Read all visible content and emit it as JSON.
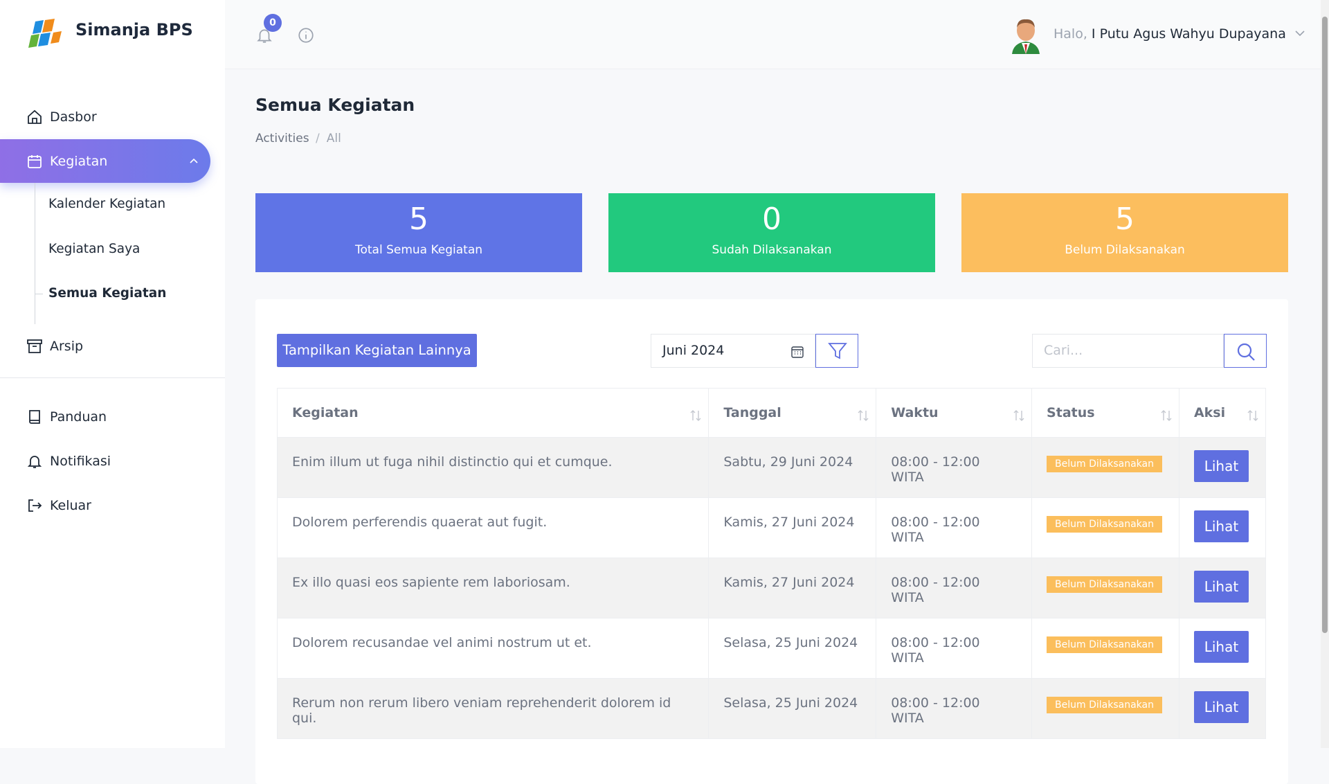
{
  "sidebar": {
    "brand": "Simanja BPS",
    "menu": {
      "dasbor": "Dasbor",
      "kegiatan": "Kegiatan",
      "children": [
        "Kalender Kegiatan",
        "Kegiatan Saya",
        "Semua Kegiatan"
      ],
      "arsip": "Arsip",
      "panduan": "Panduan",
      "notifikasi": "Notifikasi",
      "keluar": "Keluar"
    }
  },
  "topbar": {
    "notification_count": 0,
    "greeting": "Halo,",
    "user": "I Putu Agus Wahyu Dupayana"
  },
  "header": {
    "title": "Semua Kegiatan",
    "breadcrumb": [
      "Activities",
      "All"
    ]
  },
  "stats": [
    {
      "value": 5,
      "label": "Total Semua Kegiatan"
    },
    {
      "value": 0,
      "label": "Sudah Dilaksanakan"
    },
    {
      "value": 5,
      "label": "Belum Dilaksanakan"
    }
  ],
  "toolbar": {
    "button": "Tampilkan Kegiatan Lainnya",
    "month": "Juni 2024",
    "search_placeholder": "Cari..."
  },
  "table": {
    "columns": [
      "Kegiatan",
      "Tanggal",
      "Waktu",
      "Status",
      "Aksi"
    ],
    "rows": [
      [
        "Enim illum ut fuga nihil distinctio qui et cumque.",
        "Sabtu, 29 Juni 2024",
        "08:00 - 12:00 WITA",
        "Belum Dilaksanakan",
        "Lihat"
      ],
      [
        "Dolorem perferendis quaerat aut fugit.",
        "Kamis, 27 Juni 2024",
        "08:00 - 12:00 WITA",
        "Belum Dilaksanakan",
        "Lihat"
      ],
      [
        "Ex illo quasi eos sapiente rem laboriosam.",
        "Kamis, 27 Juni 2024",
        "08:00 - 12:00 WITA",
        "Belum Dilaksanakan",
        "Lihat"
      ],
      [
        "Dolorem recusandae vel animi nostrum ut et.",
        "Selasa, 25 Juni 2024",
        "08:00 - 12:00 WITA",
        "Belum Dilaksanakan",
        "Lihat"
      ],
      [
        "Rerum non rerum libero veniam reprehenderit dolorem id qui.",
        "Selasa, 25 Juni 2024",
        "08:00 - 12:00 WITA",
        "Belum Dilaksanakan",
        "Lihat"
      ]
    ]
  }
}
